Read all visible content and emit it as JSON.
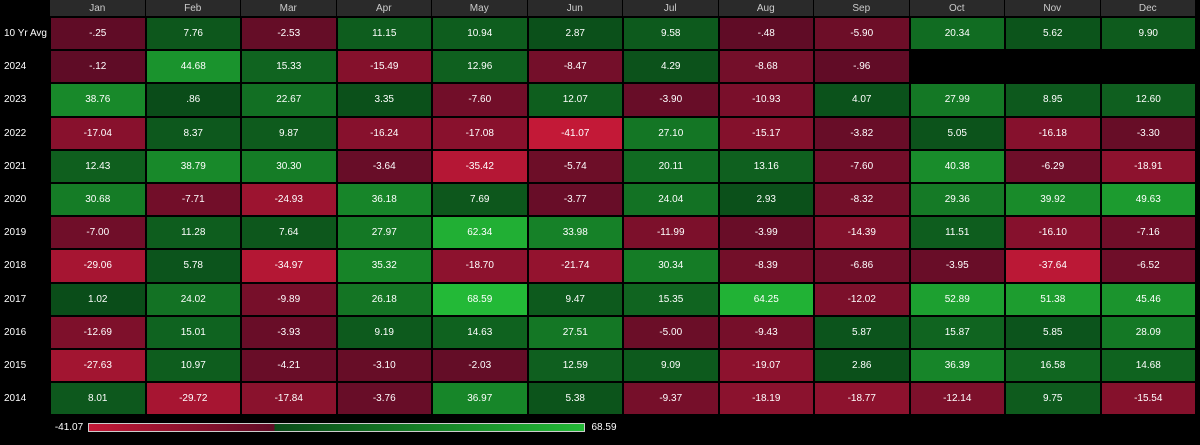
{
  "table": {
    "columns": [
      "Jan",
      "Feb",
      "Mar",
      "Apr",
      "May",
      "Jun",
      "Jul",
      "Aug",
      "Sep",
      "Oct",
      "Nov",
      "Dec"
    ],
    "rows": [
      {
        "label": "10 Yr Avg",
        "cells": [
          "-.25",
          "7.76",
          "-2.53",
          "11.15",
          "10.94",
          "2.87",
          "9.58",
          "-.48",
          "-5.90",
          "20.34",
          "5.62",
          "9.90"
        ]
      },
      {
        "label": "2024",
        "cells": [
          "-.12",
          "44.68",
          "15.33",
          "-15.49",
          "12.96",
          "-8.47",
          "4.29",
          "-8.68",
          "-.96"
        ]
      },
      {
        "label": "2023",
        "cells": [
          "38.76",
          ".86",
          "22.67",
          "3.35",
          "-7.60",
          "12.07",
          "-3.90",
          "-10.93",
          "4.07",
          "27.99",
          "8.95",
          "12.60"
        ]
      },
      {
        "label": "2022",
        "cells": [
          "-17.04",
          "8.37",
          "9.87",
          "-16.24",
          "-17.08",
          "-41.07",
          "27.10",
          "-15.17",
          "-3.82",
          "5.05",
          "-16.18",
          "-3.30"
        ]
      },
      {
        "label": "2021",
        "cells": [
          "12.43",
          "38.79",
          "30.30",
          "-3.64",
          "-35.42",
          "-5.74",
          "20.11",
          "13.16",
          "-7.60",
          "40.38",
          "-6.29",
          "-18.91"
        ]
      },
      {
        "label": "2020",
        "cells": [
          "30.68",
          "-7.71",
          "-24.93",
          "36.18",
          "7.69",
          "-3.77",
          "24.04",
          "2.93",
          "-8.32",
          "29.36",
          "39.92",
          "49.63"
        ]
      },
      {
        "label": "2019",
        "cells": [
          "-7.00",
          "11.28",
          "7.64",
          "27.97",
          "62.34",
          "33.98",
          "-11.99",
          "-3.99",
          "-14.39",
          "11.51",
          "-16.10",
          "-7.16"
        ]
      },
      {
        "label": "2018",
        "cells": [
          "-29.06",
          "5.78",
          "-34.97",
          "35.32",
          "-18.70",
          "-21.74",
          "30.34",
          "-8.39",
          "-6.86",
          "-3.95",
          "-37.64",
          "-6.52"
        ]
      },
      {
        "label": "2017",
        "cells": [
          "1.02",
          "24.02",
          "-9.89",
          "26.18",
          "68.59",
          "9.47",
          "15.35",
          "64.25",
          "-12.02",
          "52.89",
          "51.38",
          "45.46"
        ]
      },
      {
        "label": "2016",
        "cells": [
          "-12.69",
          "15.01",
          "-3.93",
          "9.19",
          "14.63",
          "27.51",
          "-5.00",
          "-9.43",
          "5.87",
          "15.87",
          "5.85",
          "28.09"
        ]
      },
      {
        "label": "2015",
        "cells": [
          "-27.63",
          "10.97",
          "-4.21",
          "-3.10",
          "-2.03",
          "12.59",
          "9.09",
          "-19.07",
          "2.86",
          "36.39",
          "16.58",
          "14.68"
        ]
      },
      {
        "label": "2014",
        "cells": [
          "8.01",
          "-29.72",
          "-17.84",
          "-3.76",
          "36.97",
          "5.38",
          "-9.37",
          "-18.19",
          "-18.77",
          "-12.14",
          "9.75",
          "-15.54"
        ]
      }
    ]
  },
  "legend": {
    "min": "-41.07",
    "max": "68.59"
  }
}
